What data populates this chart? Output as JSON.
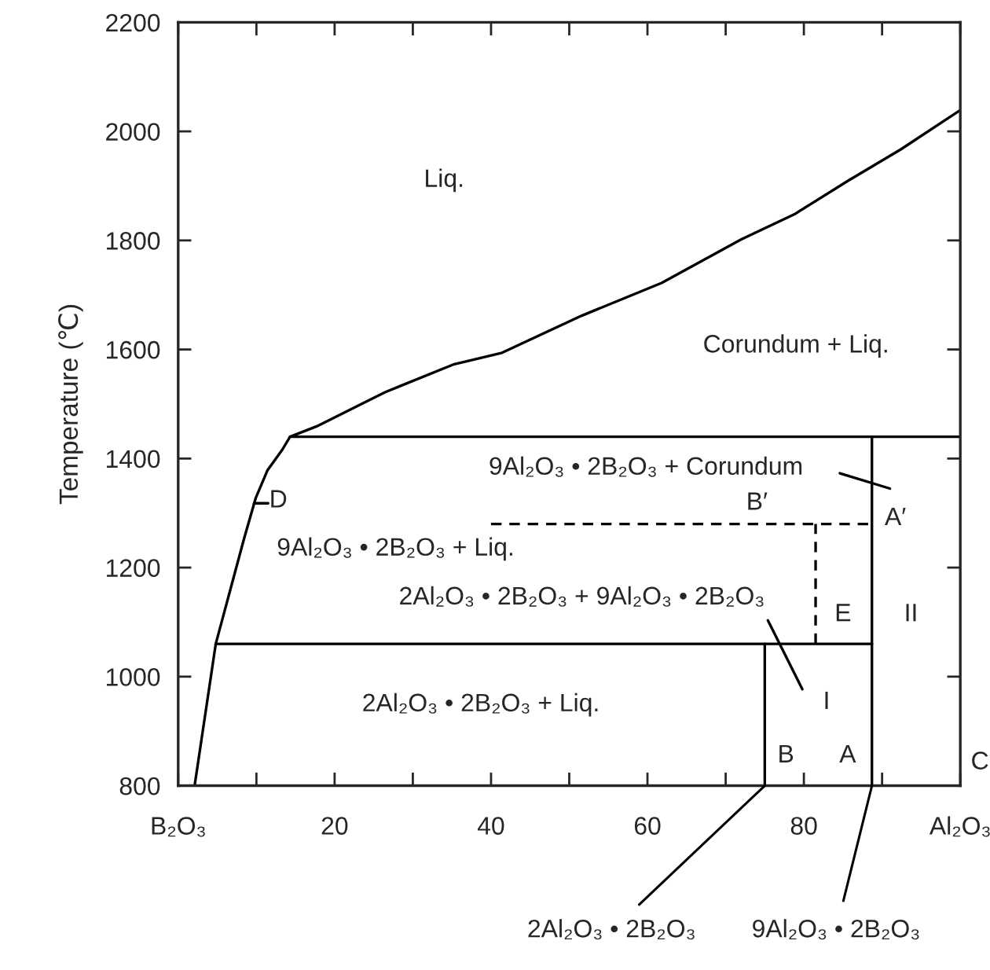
{
  "chart_data": {
    "type": "line",
    "ylabel": "Temperature (℃)",
    "xlim": [
      0,
      100
    ],
    "ylim": [
      800,
      2200
    ],
    "xticks": [
      {
        "value": 0,
        "label": "B₂O₃"
      },
      {
        "value": 10,
        "label": null
      },
      20,
      {
        "value": 30,
        "label": null
      },
      40,
      {
        "value": 50,
        "label": null
      },
      60,
      {
        "value": 70,
        "label": null
      },
      80,
      {
        "value": 90,
        "label": null
      },
      {
        "value": 100,
        "label": "Al₂O₃"
      }
    ],
    "yticks": [
      800,
      1000,
      1200,
      1400,
      1600,
      1800,
      2000,
      2200
    ],
    "grid": false,
    "legend": false,
    "marker": "none",
    "series": [
      {
        "color": "#000000",
        "line_style": "solid",
        "x": [
          2.1,
          4.8,
          8.4,
          9.9,
          11.4,
          13.3,
          14.3,
          17.7,
          26.5,
          35.3,
          41.4,
          51.6,
          61.8,
          72,
          78.8,
          85.6,
          92.4,
          100
        ],
        "values": [
          800,
          1060,
          1252,
          1327,
          1378,
          1416,
          1440,
          1459,
          1522,
          1573,
          1594,
          1662,
          1722,
          1802,
          1848,
          1909,
          1967,
          2039
        ]
      },
      {
        "color": "#000000",
        "line_style": "solid",
        "x": [
          14.3,
          100
        ],
        "values": [
          1440,
          1440
        ]
      },
      {
        "color": "#000000",
        "line_style": "solid",
        "x": [
          4.8,
          88.7
        ],
        "values": [
          1060,
          1060
        ]
      },
      {
        "color": "#000000",
        "line_style": "solid",
        "x": [
          88.7,
          88.7
        ],
        "values": [
          800,
          1440
        ]
      },
      {
        "color": "#000000",
        "line_style": "solid",
        "x": [
          75,
          75
        ],
        "values": [
          800,
          1060
        ]
      },
      {
        "color": "#000000",
        "line_style": "dashed",
        "x": [
          40,
          88.7
        ],
        "values": [
          1280,
          1280
        ]
      },
      {
        "color": "#000000",
        "line_style": "dashed",
        "x": [
          81.5,
          81.5
        ],
        "values": [
          1060,
          1280
        ]
      },
      {
        "color": "#000000",
        "line_style": "solid",
        "x": [
          84.6,
          91
        ],
        "values": [
          1373,
          1345
        ]
      },
      {
        "color": "#000000",
        "line_style": "solid",
        "x": [
          75.4,
          79.8
        ],
        "values": [
          1103,
          977
        ]
      },
      {
        "color": "#000000",
        "line_style": "solid",
        "x": [
          9.7,
          11.5
        ],
        "values": [
          1318,
          1318
        ]
      }
    ],
    "annotations": [
      "Liq.",
      "Corundum + Liq.",
      "9Al₂O₃ • 2B₂O₃ + Corundum",
      "B′",
      "A′",
      "D",
      "9Al₂O₃ • 2B₂O₃ + Liq.",
      "2Al₂O₃ • 2B₂O₃ + 9Al₂O₃ • 2B₂O₃",
      "E",
      "II",
      "I",
      "2Al₂O₃ • 2B₂O₃ + Liq.",
      "B",
      "A",
      "C",
      {
        "text": "2Al₂O₃ • 2B₂O₃",
        "x": 75,
        "y": 800
      },
      {
        "text": "9Al₂O₃ • 2B₂O₃",
        "x": 88.7,
        "y": 800
      }
    ]
  }
}
